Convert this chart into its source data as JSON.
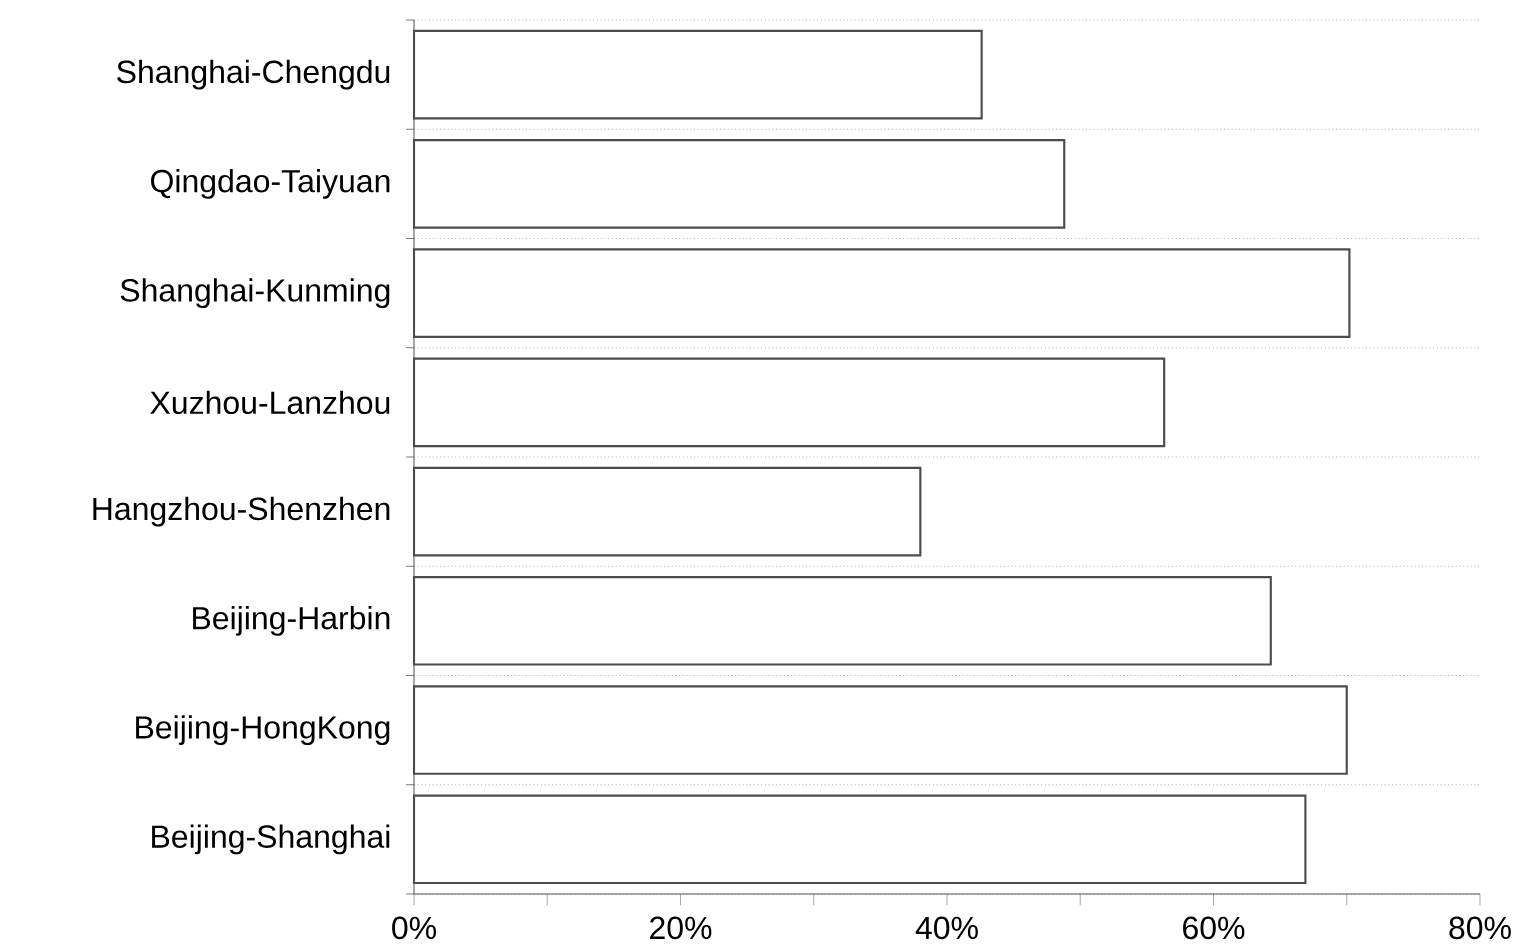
{
  "chart_data": {
    "type": "bar",
    "orientation": "horizontal",
    "categories": [
      "Shanghai-Chengdu",
      "Qingdao-Taiyuan",
      "Shanghai-Kunming",
      "Xuzhou-Lanzhou",
      "Hangzhou-Shenzhen",
      "Beijing-Harbin",
      "Beijing-HongKong",
      "Beijing-Shanghai"
    ],
    "values": [
      42.6,
      48.8,
      70.2,
      56.3,
      38.0,
      64.3,
      70.0,
      66.9
    ],
    "color": "#ffffff",
    "xlim": [
      0,
      80
    ],
    "xticks": [
      {
        "value": 0,
        "label": "0%"
      },
      {
        "value": 10,
        "label": null
      },
      {
        "value": 20,
        "label": "20%"
      },
      {
        "value": 30,
        "label": null
      },
      {
        "value": 40,
        "label": "40%"
      },
      {
        "value": 50,
        "label": null
      },
      {
        "value": 60,
        "label": "60%"
      },
      {
        "value": 70,
        "label": null
      },
      {
        "value": 80,
        "label": "80%"
      }
    ],
    "grid": "y"
  }
}
